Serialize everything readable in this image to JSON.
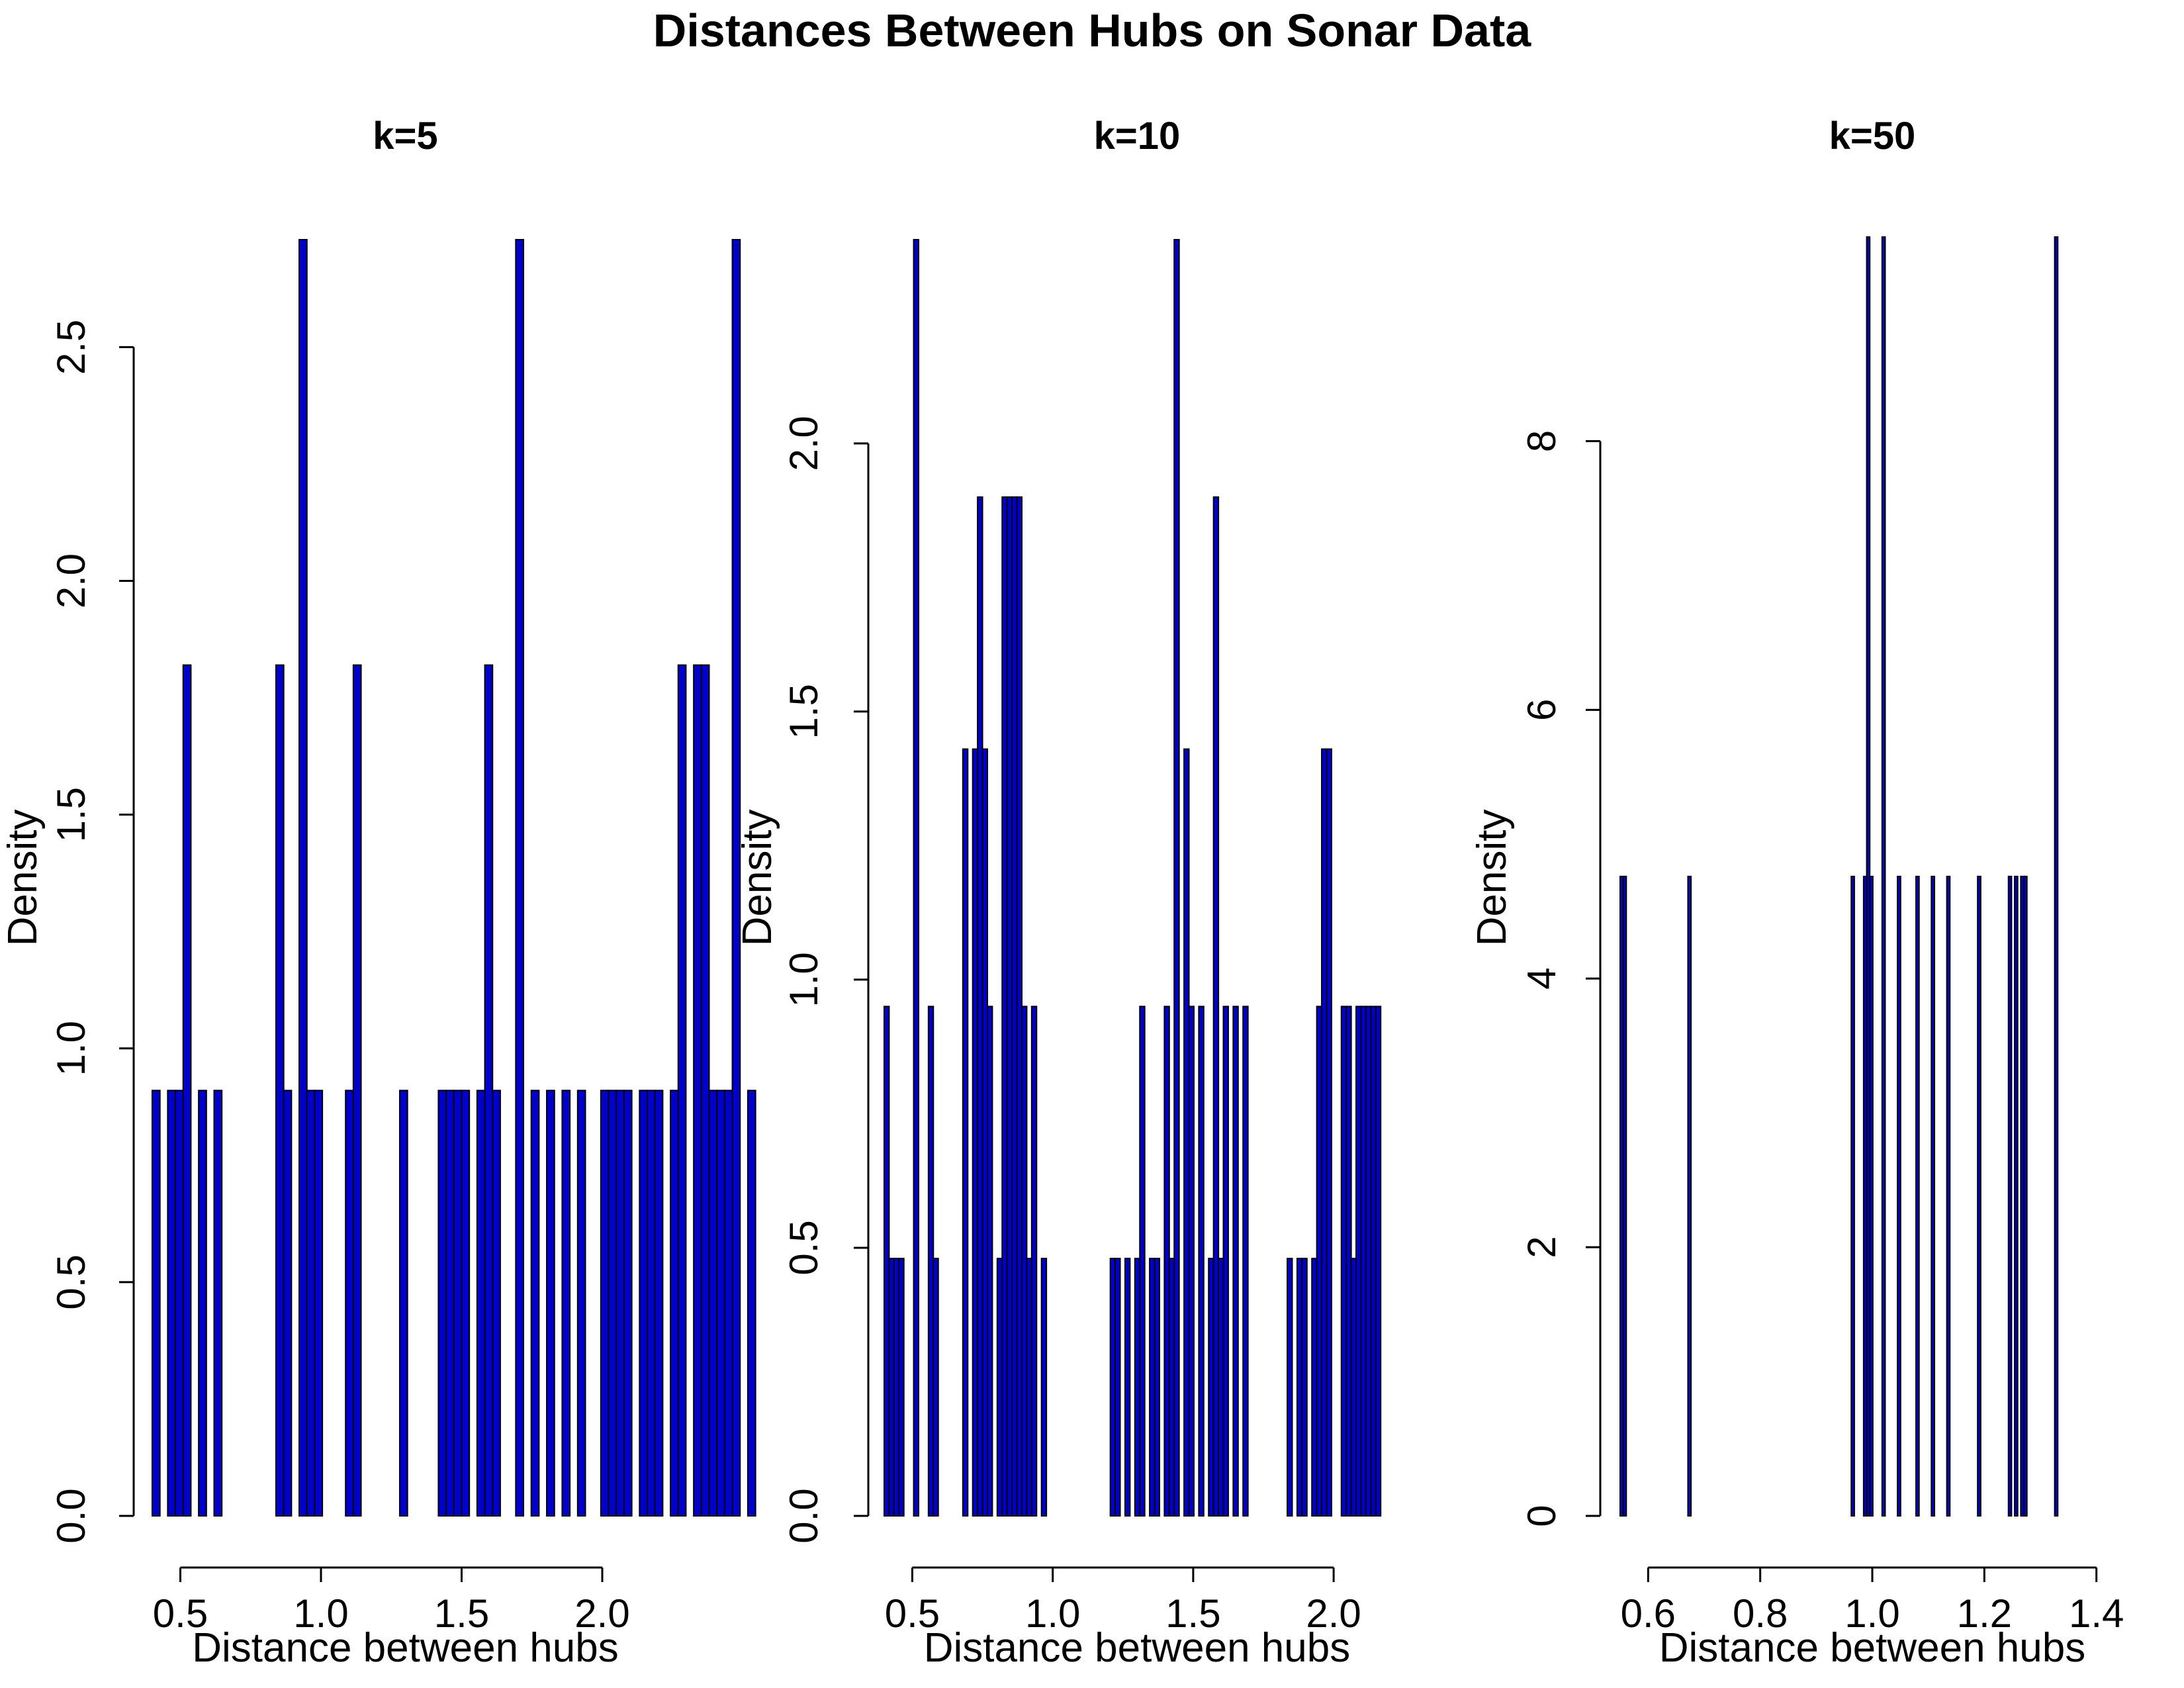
{
  "title": "Distances Between Hubs on Sonar Data",
  "colors": {
    "bar_fill": "#0000CD",
    "bar_stroke": "#000000",
    "axis": "#000000",
    "background": "#ffffff"
  },
  "chart_data": [
    {
      "type": "bar",
      "title": "k=5",
      "xlabel": "Distance between hubs",
      "ylabel": "Density",
      "bin_width": 0.0275,
      "x_start": 0.4,
      "xlim": [
        0.4,
        2.2
      ],
      "ylim": [
        0,
        2.73
      ],
      "xticks": [
        0.5,
        1.0,
        1.5,
        2.0
      ],
      "xtick_labels": [
        "0.5",
        "1.0",
        "1.5",
        "2.0"
      ],
      "yticks": [
        0,
        0.5,
        1.0,
        1.5,
        2.0,
        2.5
      ],
      "ytick_labels": [
        "0.0",
        "0.5",
        "1.0",
        "1.5",
        "2.0",
        "2.5"
      ],
      "values": [
        0.91,
        0,
        0.91,
        0.91,
        1.82,
        0,
        0.91,
        0,
        0.91,
        0,
        0,
        0,
        0,
        0,
        0,
        0,
        1.82,
        0.91,
        0,
        2.73,
        0.91,
        0.91,
        0,
        0,
        0,
        0.91,
        1.82,
        0,
        0,
        0,
        0,
        0,
        0.91,
        0,
        0,
        0,
        0,
        0.91,
        0.91,
        0.91,
        0.91,
        0,
        0.91,
        1.82,
        0.91,
        0,
        0,
        2.73,
        0,
        0.91,
        0,
        0.91,
        0,
        0.91,
        0,
        0.91,
        0,
        0,
        0.91,
        0.91,
        0.91,
        0.91,
        0,
        0.91,
        0.91,
        0.91,
        0,
        0.91,
        1.82,
        0,
        1.82,
        1.82,
        0.91,
        0.91,
        0.91,
        2.73,
        0,
        0.91
      ]
    },
    {
      "type": "bar",
      "title": "k=10",
      "xlabel": "Distance between hubs",
      "ylabel": "Density",
      "bin_width": 0.0175,
      "x_start": 0.4,
      "xlim": [
        0.4,
        2.2
      ],
      "ylim": [
        0,
        2.38
      ],
      "xticks": [
        0.5,
        1.0,
        1.5,
        2.0
      ],
      "xtick_labels": [
        "0.5",
        "1.0",
        "1.5",
        "2.0"
      ],
      "yticks": [
        0,
        0.5,
        1.0,
        1.5,
        2.0
      ],
      "ytick_labels": [
        "0.0",
        "0.5",
        "1.0",
        "1.5",
        "2.0"
      ],
      "values": [
        0.95,
        0.48,
        0.48,
        0.48,
        0,
        0,
        2.38,
        0,
        0,
        0.95,
        0.48,
        0,
        0,
        0,
        0,
        0,
        1.43,
        0,
        1.43,
        1.9,
        1.43,
        0.95,
        0,
        0.48,
        1.9,
        1.9,
        1.9,
        1.9,
        0.95,
        0.48,
        0.95,
        0,
        0.48,
        0,
        0,
        0,
        0,
        0,
        0,
        0,
        0,
        0,
        0,
        0,
        0,
        0,
        0.48,
        0.48,
        0,
        0.48,
        0,
        0.48,
        0.95,
        0,
        0.48,
        0.48,
        0,
        0.95,
        0.48,
        2.38,
        0,
        1.43,
        0.95,
        0,
        0.95,
        0,
        0.48,
        1.9,
        0.48,
        0.95,
        0,
        0.95,
        0,
        0.95,
        0,
        0,
        0,
        0,
        0,
        0,
        0,
        0,
        0.48,
        0,
        0.48,
        0.48,
        0,
        0.48,
        0.95,
        1.43,
        1.43,
        0,
        0,
        0.95,
        0.95,
        0.48,
        0.95,
        0.95,
        0.95,
        0.95,
        0.95
      ]
    },
    {
      "type": "bar",
      "title": "k=50",
      "xlabel": "Distance between hubs",
      "ylabel": "Density",
      "bin_width": 0.0055,
      "x_start": 0.55,
      "xlim": [
        0.55,
        1.45
      ],
      "ylim": [
        0,
        9.5
      ],
      "xticks": [
        0.6,
        0.8,
        1.0,
        1.2,
        1.4
      ],
      "xtick_labels": [
        "0.6",
        "0.8",
        "1.0",
        "1.2",
        "1.4"
      ],
      "yticks": [
        0,
        2,
        4,
        6,
        8
      ],
      "ytick_labels": [
        "0",
        "2",
        "4",
        "6",
        "8"
      ],
      "values": [
        4.76,
        4.76,
        0,
        0,
        0,
        0,
        0,
        0,
        0,
        0,
        0,
        0,
        0,
        0,
        0,
        0,
        0,
        0,
        0,
        0,
        0,
        0,
        4.76,
        0,
        0,
        0,
        0,
        0,
        0,
        0,
        0,
        0,
        0,
        0,
        0,
        0,
        0,
        0,
        0,
        0,
        0,
        0,
        0,
        0,
        0,
        0,
        0,
        0,
        0,
        0,
        0,
        0,
        0,
        0,
        0,
        0,
        0,
        0,
        0,
        0,
        0,
        0,
        0,
        0,
        0,
        0,
        0,
        0,
        0,
        0,
        0,
        0,
        0,
        0,
        0,
        4.76,
        0,
        0,
        0,
        4.76,
        9.52,
        4.76,
        0,
        0,
        0,
        9.52,
        0,
        0,
        0,
        0,
        4.76,
        0,
        0,
        0,
        0,
        0,
        4.76,
        0,
        0,
        0,
        0,
        4.76,
        0,
        0,
        0,
        0,
        4.76,
        0,
        0,
        0,
        0,
        0,
        0,
        0,
        0,
        0,
        4.76,
        0,
        0,
        0,
        0,
        0,
        0,
        0,
        0,
        0,
        4.76,
        0,
        4.76,
        0,
        4.76,
        4.76,
        0,
        0,
        0,
        0,
        0,
        0,
        0,
        0,
        0,
        9.52
      ]
    }
  ]
}
